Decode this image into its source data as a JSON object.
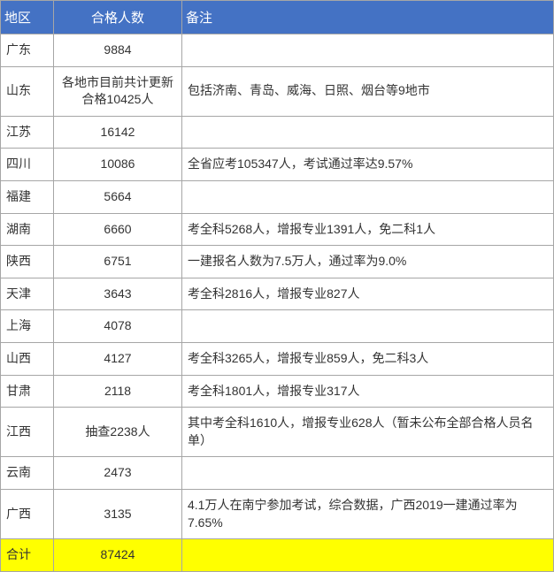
{
  "table": {
    "headers": {
      "region": "地区",
      "count": "合格人数",
      "note": "备注"
    },
    "rows": [
      {
        "region": "广东",
        "count": "9884",
        "note": ""
      },
      {
        "region": "山东",
        "count": "各地市目前共计更新合格10425人",
        "note": "包括济南、青岛、威海、日照、烟台等9地市"
      },
      {
        "region": "江苏",
        "count": "16142",
        "note": ""
      },
      {
        "region": "四川",
        "count": "10086",
        "note": "全省应考105347人，考试通过率达9.57%"
      },
      {
        "region": "福建",
        "count": "5664",
        "note": ""
      },
      {
        "region": "湖南",
        "count": "6660",
        "note": "考全科5268人，增报专业1391人，免二科1人"
      },
      {
        "region": "陕西",
        "count": "6751",
        "note": "一建报名人数为7.5万人，通过率为9.0%"
      },
      {
        "region": "天津",
        "count": "3643",
        "note": "考全科2816人，增报专业827人"
      },
      {
        "region": "上海",
        "count": "4078",
        "note": ""
      },
      {
        "region": "山西",
        "count": "4127",
        "note": "考全科3265人，增报专业859人，免二科3人"
      },
      {
        "region": "甘肃",
        "count": "2118",
        "note": "考全科1801人，增报专业317人"
      },
      {
        "region": "江西",
        "count": "抽查2238人",
        "note": "其中考全科1610人，增报专业628人（暂未公布全部合格人员名单）"
      },
      {
        "region": "云南",
        "count": "2473",
        "note": ""
      },
      {
        "region": "广西",
        "count": "3135",
        "note": "4.1万人在南宁参加考试，综合数据，广西2019一建通过率为7.65%"
      }
    ],
    "total": {
      "label": "合计",
      "count": "87424",
      "note": ""
    },
    "colors": {
      "header_bg": "#4472c4",
      "header_text": "#ffffff",
      "border": "#a6a6a6",
      "total_bg": "#ffff00",
      "cell_text": "#333333"
    }
  }
}
